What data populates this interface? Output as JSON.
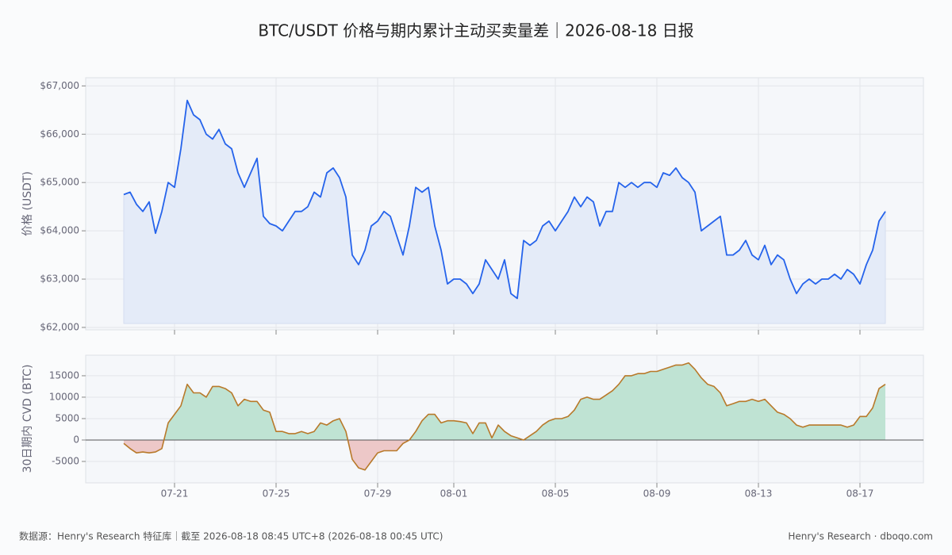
{
  "title": "BTC/USDT 价格与期内累计主动买卖量差｜2026-08-18 日报",
  "footer": {
    "source": "数据源：Henry's Research 特征库｜截至 2026-08-18 08:45 UTC+8 (2026-08-18 00:45 UTC)",
    "brand": "Henry's Research · dboqo.com"
  },
  "chart_data": [
    {
      "type": "line",
      "ylabel": "价格 (USDT)",
      "color": "#2563eb",
      "fill_color": "#e4ebf8",
      "grid": true,
      "ylim": [
        61950,
        67170
      ],
      "yticks": [
        {
          "value": 62000,
          "label": "$62,000"
        },
        {
          "value": 63000,
          "label": "$63,000"
        },
        {
          "value": 64000,
          "label": "$64,000"
        },
        {
          "value": 65000,
          "label": "$65,000"
        },
        {
          "value": 66000,
          "label": "$66,000"
        },
        {
          "value": 67000,
          "label": "$67,000"
        }
      ],
      "values": [
        64750,
        64800,
        64550,
        64400,
        64600,
        63950,
        64400,
        65000,
        64900,
        65700,
        66700,
        66400,
        66300,
        66000,
        65900,
        66100,
        65800,
        65700,
        65200,
        64900,
        65200,
        65500,
        64300,
        64150,
        64100,
        64000,
        64200,
        64400,
        64400,
        64500,
        64800,
        64700,
        65200,
        65300,
        65100,
        64700,
        63500,
        63300,
        63600,
        64100,
        64200,
        64400,
        64300,
        63900,
        63500,
        64100,
        64900,
        64800,
        64900,
        64100,
        63600,
        62900,
        63000,
        63000,
        62900,
        62700,
        62900,
        63400,
        63200,
        63000,
        63400,
        62700,
        62600,
        63800,
        63700,
        63800,
        64100,
        64200,
        64000,
        64200,
        64400,
        64700,
        64500,
        64700,
        64600,
        64100,
        64400,
        64400,
        65000,
        64900,
        65000,
        64900,
        65000,
        65000,
        64900,
        65200,
        65150,
        65300,
        65100,
        65000,
        64800,
        64000,
        64100,
        64200,
        64300,
        63500,
        63500,
        63600,
        63800,
        63500,
        63400,
        63700,
        63300,
        63500,
        63400,
        63000,
        62700,
        62900,
        63000,
        62900,
        63000,
        63000,
        63100,
        63000,
        63200,
        63100,
        62900,
        63300,
        63600,
        64200,
        64400
      ]
    },
    {
      "type": "area",
      "ylabel": "30日期内 CVD (BTC)",
      "color": "#b8792a",
      "positive_fill": "#bfe3d3",
      "negative_fill": "#edc8c8",
      "zero_color": "#555",
      "grid": true,
      "ylim": [
        -10000,
        19800
      ],
      "yticks": [
        -5000,
        0,
        5000,
        10000,
        15000
      ],
      "categories": [
        null,
        null,
        null,
        null,
        null,
        null,
        null,
        null,
        "07-21",
        null,
        null,
        null,
        null,
        null,
        null,
        null,
        null,
        null,
        null,
        null,
        null,
        null,
        null,
        null,
        "07-25",
        null,
        null,
        null,
        null,
        null,
        null,
        null,
        null,
        null,
        null,
        null,
        null,
        null,
        null,
        null,
        "07-29",
        null,
        null,
        null,
        null,
        null,
        null,
        null,
        null,
        null,
        null,
        null,
        "08-01",
        null,
        null,
        null,
        null,
        null,
        null,
        null,
        null,
        null,
        null,
        null,
        null,
        null,
        null,
        null,
        "08-05",
        null,
        null,
        null,
        null,
        null,
        null,
        null,
        null,
        null,
        null,
        null,
        null,
        null,
        null,
        null,
        "08-09",
        null,
        null,
        null,
        null,
        null,
        null,
        null,
        null,
        null,
        null,
        null,
        null,
        null,
        null,
        null,
        "08-13",
        null,
        null,
        null,
        null,
        null,
        null,
        null,
        null,
        null,
        null,
        null,
        null,
        null,
        null,
        null,
        "08-17",
        null,
        null,
        null,
        null
      ],
      "values": [
        -800,
        -2000,
        -3000,
        -2800,
        -3000,
        -2800,
        -2000,
        4000,
        6000,
        8000,
        13000,
        11000,
        11000,
        10000,
        12500,
        12500,
        12000,
        11000,
        8000,
        9500,
        9000,
        9000,
        7000,
        6500,
        2000,
        2000,
        1500,
        1500,
        2000,
        1500,
        2000,
        4000,
        3500,
        4500,
        5000,
        2000,
        -4500,
        -6500,
        -7000,
        -5000,
        -3000,
        -2500,
        -2500,
        -2500,
        -800,
        0,
        2000,
        4500,
        6000,
        6000,
        4000,
        4500,
        4500,
        4300,
        4000,
        1500,
        4000,
        4000,
        500,
        3500,
        2000,
        1000,
        500,
        0,
        1000,
        2000,
        3500,
        4500,
        5000,
        5000,
        5500,
        7000,
        9500,
        10000,
        9500,
        9500,
        10500,
        11500,
        13000,
        15000,
        15000,
        15500,
        15500,
        16000,
        16000,
        16500,
        17000,
        17500,
        17500,
        18000,
        16500,
        14500,
        13000,
        12500,
        11000,
        8000,
        8500,
        9000,
        9000,
        9500,
        9000,
        9500,
        8000,
        6500,
        6000,
        5000,
        3500,
        3000,
        3500,
        3500,
        3500,
        3500,
        3500,
        3500,
        3000,
        3500,
        5500,
        5500,
        7500,
        12000,
        13000
      ]
    }
  ]
}
